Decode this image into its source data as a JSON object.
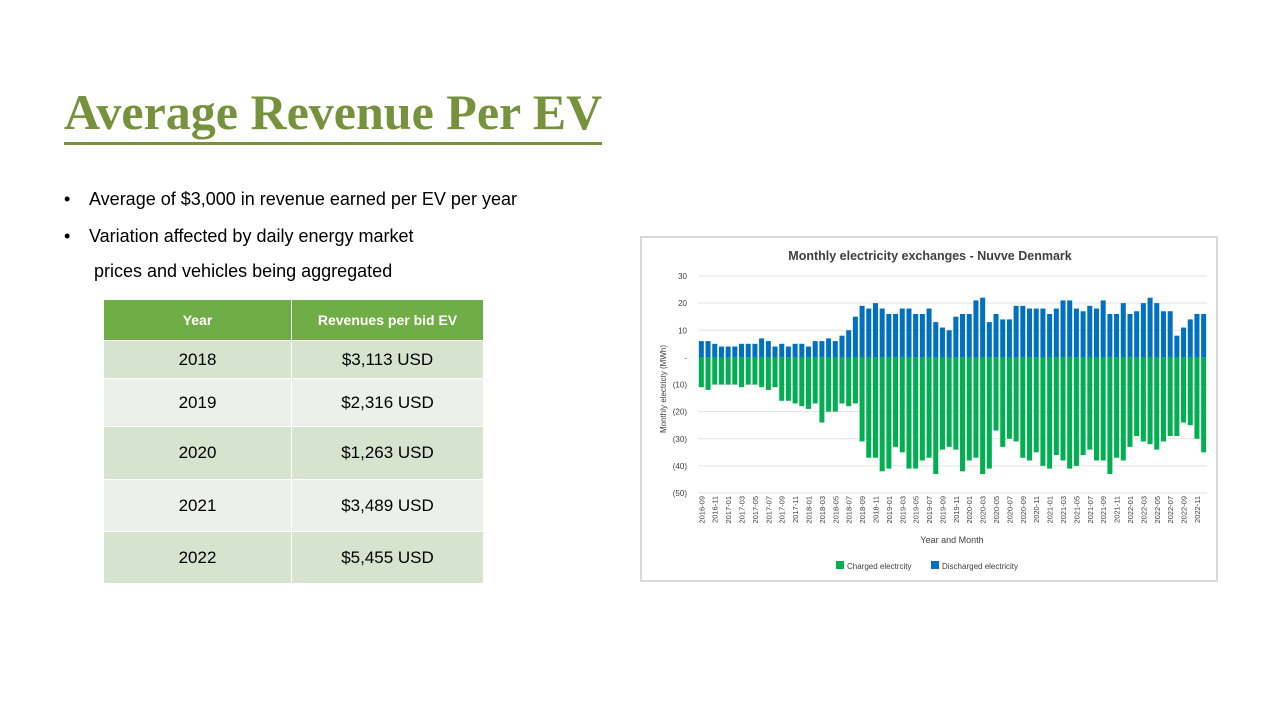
{
  "slide": {
    "title": "Average Revenue Per EV",
    "bullets": [
      {
        "line1": "Average of $3,000 in revenue earned per EV per year",
        "line2": ""
      },
      {
        "line1": "Variation affected by daily energy market",
        "line2": "prices and vehicles being aggregated"
      }
    ],
    "bullet_char": "•"
  },
  "table": {
    "headers": [
      "Year",
      "Revenues per bid EV"
    ],
    "rows": [
      [
        "2018",
        "$3,113 USD"
      ],
      [
        "2019",
        "$2,316 USD"
      ],
      [
        "2020",
        "$1,263 USD"
      ],
      [
        "2021",
        "$3,489 USD"
      ],
      [
        "2022",
        "$5,455 USD"
      ]
    ],
    "colors": {
      "header_bg": "#70ad47",
      "row_odd": "#d5e3cf",
      "row_even": "#ebf1e9"
    }
  },
  "chart_data": {
    "type": "bar",
    "title": "Monthly electricity exchanges - Nuvve Denmark",
    "xlabel": "Year and Month",
    "ylabel": "Monthly electricty (MWh)",
    "ylim": [
      -50,
      30
    ],
    "yticks": [
      30,
      20,
      10,
      0,
      -10,
      -20,
      -30,
      -40,
      -50
    ],
    "ytick_labels": [
      "30",
      "20",
      "10",
      "-",
      "(10)",
      "(20)",
      "(30)",
      "(40)",
      "(50)"
    ],
    "grid": true,
    "legend_position": "bottom",
    "categories": [
      "2016-09",
      "2016-10",
      "2016-11",
      "2016-12",
      "2017-01",
      "2017-02",
      "2017-03",
      "2017-04",
      "2017-05",
      "2017-06",
      "2017-07",
      "2017-08",
      "2017-09",
      "2017-10",
      "2017-11",
      "2017-12",
      "2018-01",
      "2018-02",
      "2018-03",
      "2018-04",
      "2018-05",
      "2018-06",
      "2018-07",
      "2018-08",
      "2018-09",
      "2018-10",
      "2018-11",
      "2018-12",
      "2019-01",
      "2019-02",
      "2019-03",
      "2019-04",
      "2019-05",
      "2019-06",
      "2019-07",
      "2019-08",
      "2019-09",
      "2019-10",
      "2019-11",
      "2019-12",
      "2020-01",
      "2020-02",
      "2020-03",
      "2020-04",
      "2020-05",
      "2020-06",
      "2020-07",
      "2020-08",
      "2020-09",
      "2020-10",
      "2020-11",
      "2020-12",
      "2021-01",
      "2021-02",
      "2021-03",
      "2021-04",
      "2021-05",
      "2021-06",
      "2021-07",
      "2021-08",
      "2021-09",
      "2021-10",
      "2021-11",
      "2021-12",
      "2022-01",
      "2022-02",
      "2022-03",
      "2022-04",
      "2022-05",
      "2022-06",
      "2022-07",
      "2022-08",
      "2022-09",
      "2022-10",
      "2022-11",
      "2022-12"
    ],
    "xtick_labels": [
      "2016-09",
      "2016-11",
      "2017-01",
      "2017-03",
      "2017-05",
      "2017-07",
      "2017-09",
      "2017-11",
      "2018-01",
      "2018-03",
      "2018-05",
      "2018-07",
      "2018-09",
      "2018-11",
      "2019-01",
      "2019-03",
      "2019-05",
      "2019-07",
      "2019-09",
      "2019-11",
      "2020-01",
      "2020-03",
      "2020-05",
      "2020-07",
      "2020-09",
      "2020-11",
      "2021-01",
      "2021-03",
      "2021-05",
      "2021-07",
      "2021-09",
      "2021-11",
      "2022-01",
      "2022-03",
      "2022-05",
      "2022-07",
      "2022-09",
      "2022-11"
    ],
    "series": [
      {
        "name": "Charged electrcity",
        "color": "#00b050",
        "values": [
          -11,
          -12,
          -10,
          -10,
          -10,
          -10,
          -11,
          -10,
          -10,
          -11,
          -12,
          -11,
          -16,
          -16,
          -17,
          -18,
          -19,
          -17,
          -24,
          -20,
          -20,
          -17,
          -18,
          -17,
          -31,
          -37,
          -37,
          -42,
          -41,
          -33,
          -35,
          -41,
          -41,
          -38,
          -37,
          -43,
          -34,
          -33,
          -34,
          -42,
          -38,
          -37,
          -43,
          -41,
          -27,
          -33,
          -30,
          -31,
          -37,
          -38,
          -35,
          -40,
          -41,
          -36,
          -38,
          -41,
          -40,
          -36,
          -34,
          -38,
          -38,
          -43,
          -37,
          -38,
          -33,
          -29,
          -31,
          -32,
          -34,
          -31,
          -29,
          -29,
          -24,
          -25,
          -30,
          -35
        ]
      },
      {
        "name": "Discharged electricity",
        "color": "#0070c0",
        "values": [
          6,
          6,
          5,
          4,
          4,
          4,
          5,
          5,
          5,
          7,
          6,
          4,
          5,
          4,
          5,
          5,
          4,
          6,
          6,
          7,
          6,
          8,
          10,
          15,
          19,
          18,
          20,
          18,
          16,
          16,
          18,
          18,
          16,
          16,
          18,
          13,
          11,
          10,
          15,
          16,
          16,
          21,
          22,
          13,
          16,
          14,
          14,
          19,
          19,
          18,
          18,
          18,
          16,
          18,
          21,
          21,
          18,
          17,
          19,
          18,
          21,
          16,
          16,
          20,
          16,
          17,
          20,
          22,
          20,
          17,
          17,
          8,
          11,
          14,
          16,
          16
        ]
      }
    ]
  }
}
